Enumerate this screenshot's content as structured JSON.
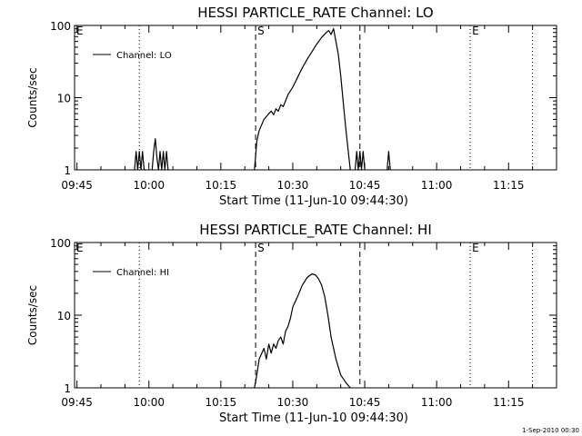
{
  "footer": {
    "timestamp": "1-Sep-2010 00:30"
  },
  "chart_data": [
    {
      "type": "line",
      "title": "HESSI PARTICLE_RATE Channel: LO",
      "xlabel": "Start Time (11-Jun-10 09:44:30)",
      "ylabel": "Counts/sec",
      "yscale": "log",
      "ylim": [
        1,
        100
      ],
      "xlim": [
        "09:44:30",
        "11:25:00"
      ],
      "yticks": [
        {
          "value": 1,
          "label": "1"
        },
        {
          "value": 10,
          "label": "10"
        },
        {
          "value": 100,
          "label": "100"
        }
      ],
      "xticks": [
        "09:45",
        "10:00",
        "10:15",
        "10:30",
        "10:45",
        "11:00",
        "11:15"
      ],
      "legend": {
        "label": "Channel: LO",
        "placement": "top-left"
      },
      "markers": [
        {
          "label": "E",
          "time": "09:44:30",
          "style": "none"
        },
        {
          "label": "",
          "time": "09:58:00",
          "style": "dotted"
        },
        {
          "label": "S",
          "time": "10:22:15",
          "style": "dashed"
        },
        {
          "label": "",
          "time": "10:44:00",
          "style": "dashed"
        },
        {
          "label": "E",
          "time": "11:07:00",
          "style": "dotted"
        },
        {
          "label": "",
          "time": "11:20:00",
          "style": "dotted"
        }
      ],
      "series": [
        {
          "segments": [
            {
              "x": [
                "09:57:00",
                "09:57:20",
                "09:57:40",
                "09:58:00",
                "09:58:20",
                "09:58:40",
                "09:59:00",
                "09:59:20"
              ],
              "y": [
                1,
                1.8,
                1,
                1.8,
                1,
                1.8,
                1,
                1
              ]
            },
            {
              "x": [
                "10:00:40",
                "10:01:00",
                "10:01:20",
                "10:01:40",
                "10:02:00",
                "10:02:20",
                "10:02:40",
                "10:03:00",
                "10:03:20",
                "10:03:40",
                "10:04:00"
              ],
              "y": [
                1,
                1.8,
                2.7,
                1.5,
                1,
                1.8,
                1,
                1.8,
                1,
                1.8,
                1
              ]
            },
            {
              "x": [
                "10:22:00",
                "10:22:30",
                "10:23:00",
                "10:24:00",
                "10:25:00",
                "10:25:30",
                "10:26:00",
                "10:26:30",
                "10:27:00",
                "10:27:30",
                "10:28:00",
                "10:28:30",
                "10:29:00",
                "10:30:00",
                "10:31:00",
                "10:32:00",
                "10:33:00",
                "10:34:00",
                "10:35:00",
                "10:36:00",
                "10:37:00",
                "10:37:30",
                "10:38:00",
                "10:38:30",
                "10:39:00",
                "10:39:30",
                "10:40:00",
                "10:40:30",
                "10:41:00",
                "10:41:30",
                "10:42:00"
              ],
              "y": [
                1,
                2.5,
                3.5,
                5,
                6,
                6.5,
                5.8,
                7,
                6.5,
                8,
                7.5,
                9,
                11,
                14,
                19,
                26,
                34,
                43,
                55,
                68,
                80,
                85,
                75,
                90,
                60,
                40,
                20,
                9,
                4,
                2,
                1
              ]
            },
            {
              "x": [
                "10:43:00",
                "10:43:20",
                "10:43:40",
                "10:44:00",
                "10:44:20",
                "10:44:40",
                "10:45:00"
              ],
              "y": [
                1,
                1.8,
                1,
                1.8,
                1,
                1.8,
                1
              ]
            },
            {
              "x": [
                "10:49:40",
                "10:50:00",
                "10:50:20"
              ],
              "y": [
                1,
                1.8,
                1
              ]
            }
          ]
        }
      ]
    },
    {
      "type": "line",
      "title": "HESSI PARTICLE_RATE Channel: HI",
      "xlabel": "Start Time (11-Jun-10 09:44:30)",
      "ylabel": "Counts/sec",
      "yscale": "log",
      "ylim": [
        1,
        100
      ],
      "xlim": [
        "09:44:30",
        "11:25:00"
      ],
      "yticks": [
        {
          "value": 1,
          "label": "1"
        },
        {
          "value": 10,
          "label": "10"
        },
        {
          "value": 100,
          "label": "100"
        }
      ],
      "xticks": [
        "09:45",
        "10:00",
        "10:15",
        "10:30",
        "10:45",
        "11:00",
        "11:15"
      ],
      "legend": {
        "label": "Channel: HI",
        "placement": "top-left"
      },
      "markers": [
        {
          "label": "E",
          "time": "09:44:30",
          "style": "none"
        },
        {
          "label": "",
          "time": "09:58:00",
          "style": "dotted"
        },
        {
          "label": "S",
          "time": "10:22:15",
          "style": "dashed"
        },
        {
          "label": "",
          "time": "10:44:00",
          "style": "dashed"
        },
        {
          "label": "E",
          "time": "11:07:00",
          "style": "dotted"
        },
        {
          "label": "",
          "time": "11:20:00",
          "style": "dotted"
        }
      ],
      "series": [
        {
          "segments": [
            {
              "x": [
                "10:22:00",
                "10:22:30",
                "10:23:00",
                "10:24:00",
                "10:24:30",
                "10:25:00",
                "10:25:30",
                "10:26:00",
                "10:26:30",
                "10:27:00",
                "10:27:30",
                "10:28:00",
                "10:28:30",
                "10:29:00",
                "10:29:30",
                "10:30:00",
                "10:31:00",
                "10:32:00",
                "10:33:00",
                "10:34:00",
                "10:34:40",
                "10:35:20",
                "10:36:00",
                "10:36:40",
                "10:37:20",
                "10:38:00",
                "10:39:00",
                "10:40:00",
                "10:41:00",
                "10:42:00"
              ],
              "y": [
                1,
                1.5,
                2.5,
                3.5,
                2.5,
                4,
                3,
                4,
                3.5,
                4.5,
                5,
                4,
                6,
                7,
                9,
                13,
                18,
                26,
                33,
                37,
                36,
                32,
                26,
                18,
                10,
                5,
                2.5,
                1.5,
                1.2,
                1
              ]
            }
          ]
        }
      ]
    }
  ]
}
